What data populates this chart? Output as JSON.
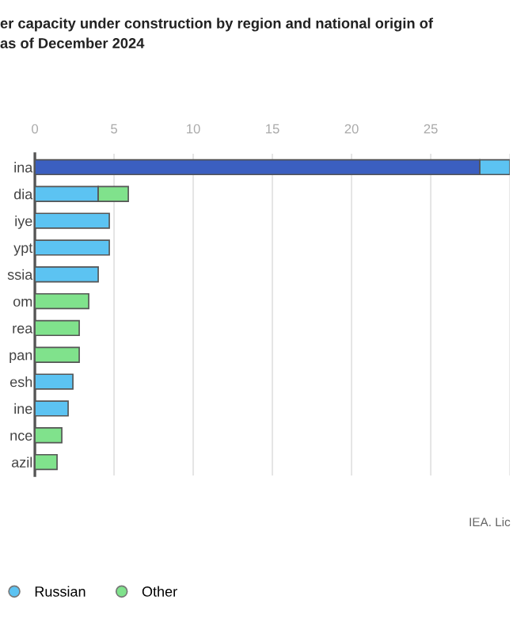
{
  "chart_data": {
    "type": "bar",
    "orientation": "horizontal",
    "stacked": true,
    "title": "er capacity under construction by region and national origin of\nas of December 2024",
    "categories": [
      "ina",
      "dia",
      "iye",
      "ypt",
      "ssia",
      "om",
      "rea",
      "pan",
      "esh",
      "ine",
      "nce",
      "azil"
    ],
    "series": [
      {
        "color": "#3b5fc0",
        "values": [
          28.1,
          null,
          null,
          null,
          null,
          null,
          null,
          null,
          null,
          null,
          null,
          null
        ]
      },
      {
        "name": "Russian",
        "color": "#5cc3f2",
        "values": [
          1.9,
          4.0,
          4.7,
          4.7,
          4.0,
          null,
          null,
          null,
          2.4,
          2.1,
          null,
          null
        ]
      },
      {
        "name": "Other",
        "color": "#80e28c",
        "values": [
          null,
          1.9,
          null,
          null,
          null,
          3.4,
          2.8,
          2.8,
          null,
          null,
          1.7,
          1.4
        ]
      }
    ],
    "xlim": [
      0,
      30
    ],
    "xticks": [
      0,
      5,
      10,
      15,
      20,
      25,
      {
        "value": 30,
        "label": null
      }
    ],
    "grid": "x",
    "legend": "bottom left",
    "annotations": [
      "IEA. Lic"
    ]
  }
}
